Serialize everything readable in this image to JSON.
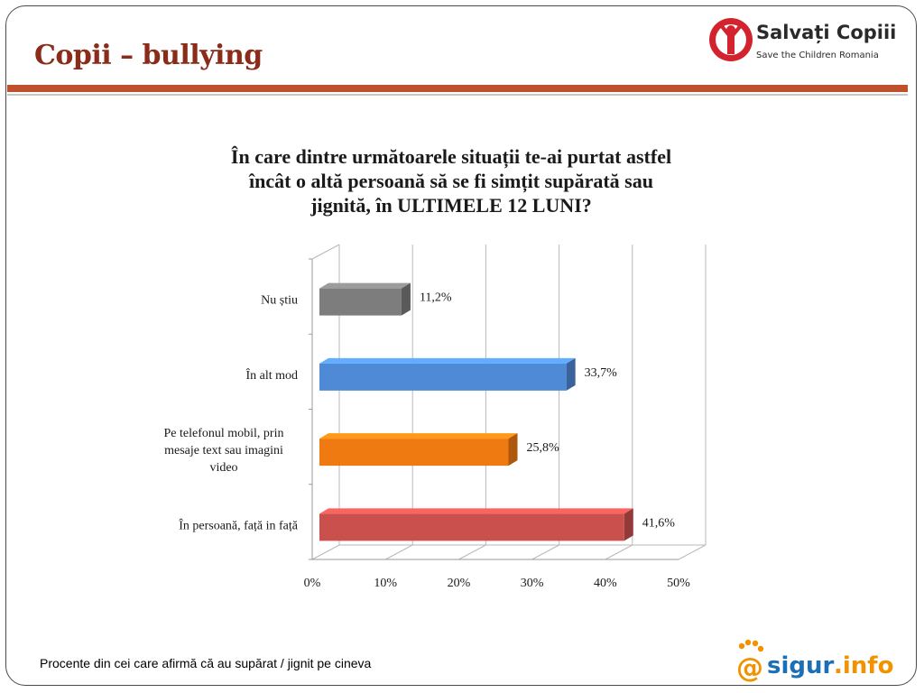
{
  "slide": {
    "title": "Copii – bullying",
    "footer_note": "Procente din cei care afirmă că au supărat / jignit pe cineva"
  },
  "logos": {
    "salvati_copiii": {
      "name": "Salvați Copiii",
      "subtitle": "Save the Children Romania",
      "color": "#d3232f"
    },
    "sigur_info": {
      "prefix": "@",
      "word": "sigur",
      "suffix": ".info",
      "color_orange": "#f29200",
      "color_blue": "#1b6fb4"
    }
  },
  "colors": {
    "title": "#8b2c1b",
    "rule": "#c0502b"
  },
  "chart_data": {
    "type": "bar",
    "orientation": "horizontal",
    "title_lines": [
      "În care dintre următoarele situații te-ai purtat astfel",
      "încât o altă persoană să se fi simțit supărată sau",
      "jignită, în ULTIMELE 12 LUNI?"
    ],
    "categories": [
      [
        "Nu știu"
      ],
      [
        "În alt mod"
      ],
      [
        "Pe telefonul mobil, prin",
        "mesaje text sau imagini",
        "video"
      ],
      [
        "În persoană, față in față"
      ]
    ],
    "values": [
      11.2,
      33.7,
      25.8,
      41.6
    ],
    "value_labels": [
      "11,2%",
      "33,7%",
      "25,8%",
      "41,6%"
    ],
    "colors": [
      "#7d7d7d",
      "#4f8ad6",
      "#f07a12",
      "#c9504c"
    ],
    "xlim": [
      0,
      50
    ],
    "ticks": [
      0,
      10,
      20,
      30,
      40,
      50
    ],
    "tick_labels": [
      "0%",
      "10%",
      "20%",
      "30%",
      "40%",
      "50%"
    ],
    "grid": true,
    "style": "3d"
  }
}
